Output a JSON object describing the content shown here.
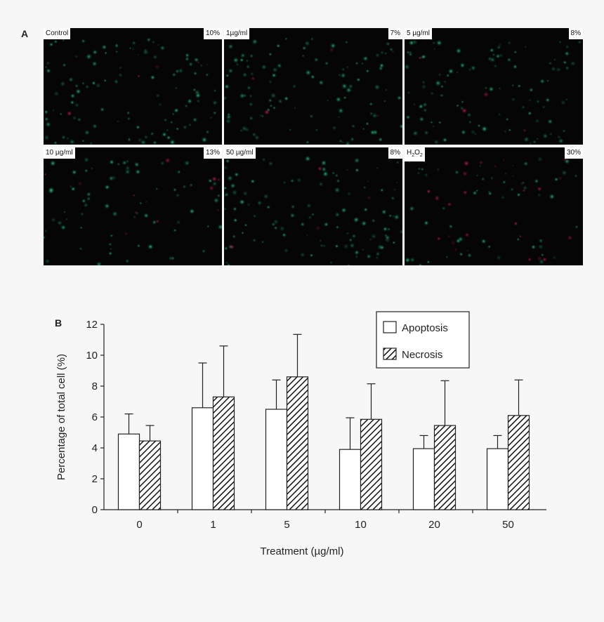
{
  "panel_a": {
    "letter": "A",
    "images": [
      {
        "condition": "Control",
        "percent": "10%",
        "cells": "mostly-green"
      },
      {
        "condition": "1µg/ml",
        "percent": "7%",
        "cells": "mostly-green"
      },
      {
        "condition": "5 µg/ml",
        "percent": "8%",
        "cells": "mostly-green"
      },
      {
        "condition": "10 µg/ml",
        "percent": "13%",
        "cells": "green-red"
      },
      {
        "condition": "50 µg/ml",
        "percent": "8%",
        "cells": "mostly-green"
      },
      {
        "condition": "H2O2",
        "condition_main": "H",
        "condition_sub1": "2",
        "condition_mid": "O",
        "condition_sub2": "2",
        "percent": "30%",
        "cells": "many-red"
      }
    ],
    "colors": {
      "live_cell": "#2fd08a",
      "dead_cell": "#d8245a",
      "background": "#050505"
    }
  },
  "panel_b": {
    "letter": "B",
    "chart_data": {
      "type": "bar",
      "categories": [
        "0",
        "1",
        "5",
        "10",
        "20",
        "50"
      ],
      "series": [
        {
          "name": "Apoptosis",
          "fill": "white",
          "values": [
            4.9,
            6.6,
            6.5,
            3.9,
            3.95,
            3.95
          ],
          "errors": [
            1.3,
            2.9,
            1.9,
            2.05,
            0.85,
            0.85
          ]
        },
        {
          "name": "Necrosis",
          "fill": "hatched",
          "values": [
            4.45,
            7.3,
            8.6,
            5.85,
            5.45,
            6.1
          ],
          "errors": [
            1.0,
            3.3,
            2.75,
            2.3,
            2.9,
            2.3
          ]
        }
      ],
      "xlabel": "Treatment (µg/ml)",
      "ylabel": "Percentage of total cell (%)",
      "ylim": [
        0,
        12
      ],
      "yticks": [
        "0",
        "2",
        "4",
        "6",
        "8",
        "10",
        "12"
      ],
      "legend": "top-right",
      "grid": false
    }
  }
}
